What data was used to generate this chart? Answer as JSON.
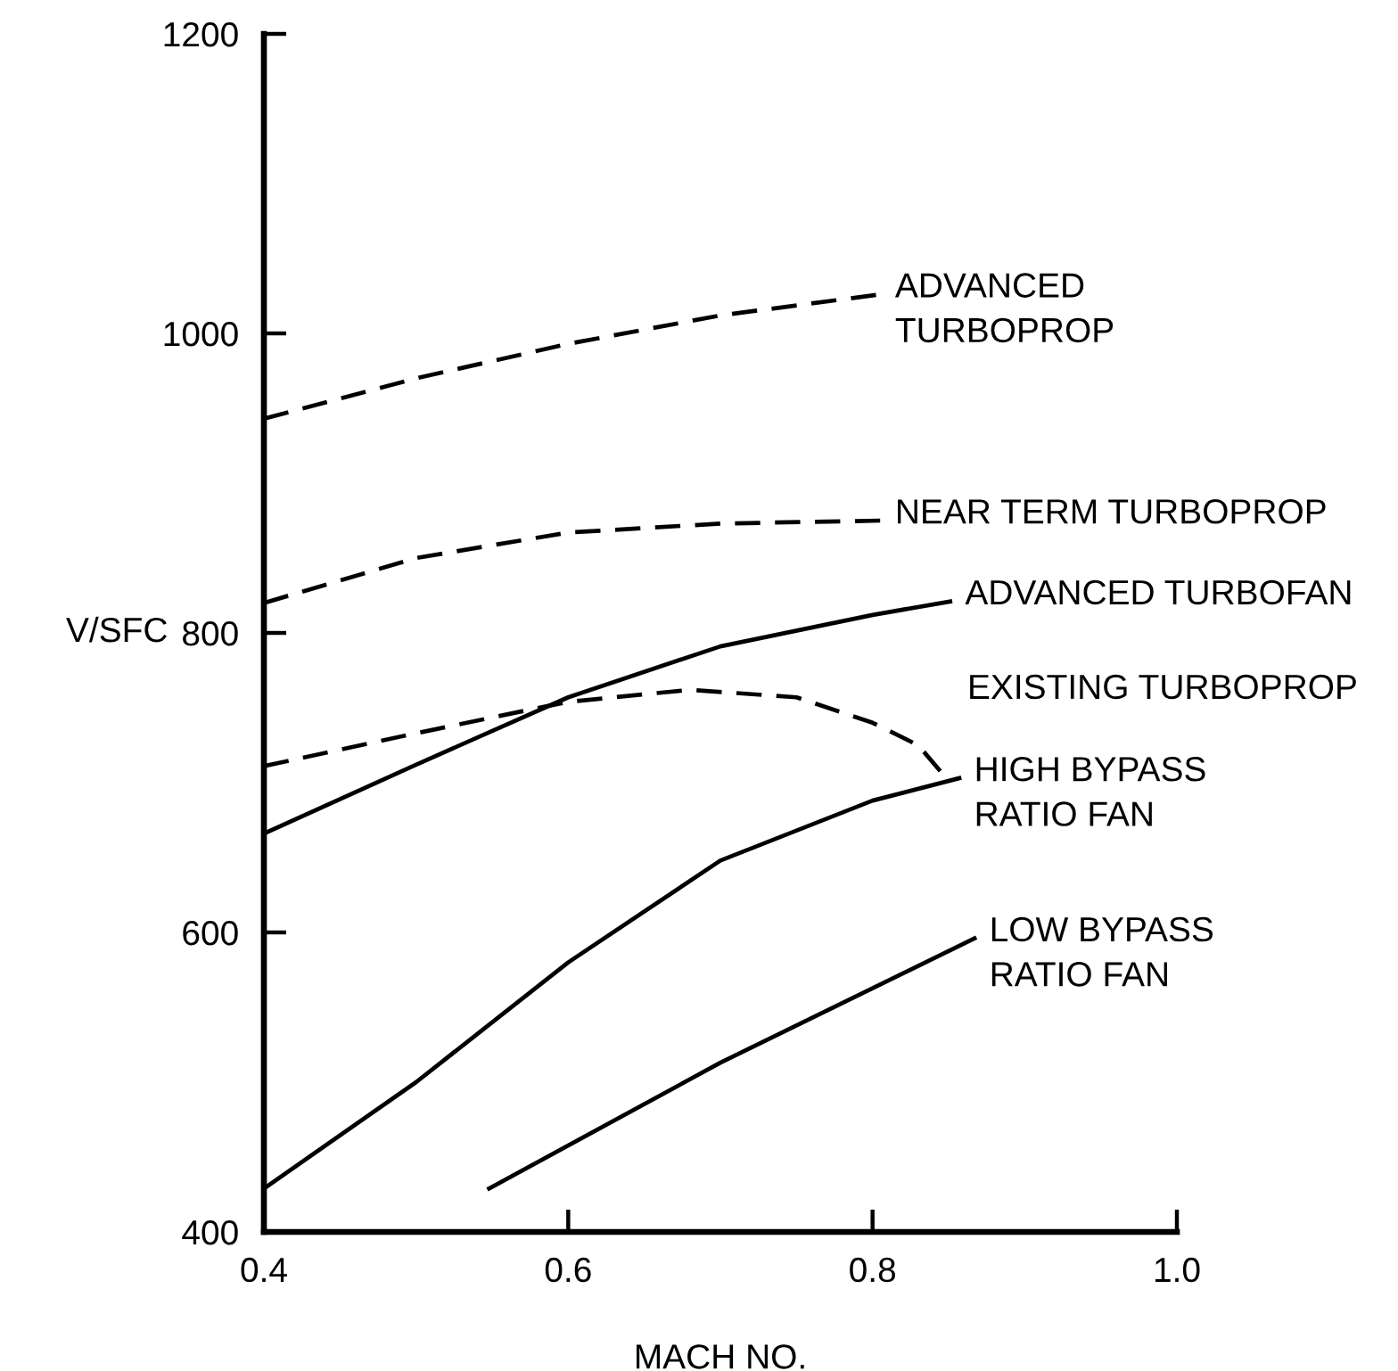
{
  "chart_data": {
    "type": "line",
    "xlabel": "MACH NO.",
    "ylabel": "V/SFC",
    "xlim": [
      0.4,
      1.0
    ],
    "ylim": [
      400,
      1200
    ],
    "xticks": [
      0.4,
      0.6,
      0.8,
      {
        "value": 1.0,
        "label": "1.0"
      }
    ],
    "yticks": [
      400,
      600,
      800,
      1000,
      1200
    ],
    "grid": false,
    "series": [
      {
        "name": "ADVANCED\nTURBOPROP",
        "color": "#000000",
        "line_style": "dashed",
        "x": [
          0.4,
          0.5,
          0.6,
          0.7,
          0.805
        ],
        "values": [
          943,
          970,
          993,
          1012,
          1026
        ]
      },
      {
        "name": "NEAR TERM TURBOPROP",
        "color": "#000000",
        "line_style": "dashed",
        "x": [
          0.4,
          0.5,
          0.6,
          0.7,
          0.805
        ],
        "values": [
          820,
          850,
          867,
          873,
          875
        ]
      },
      {
        "name": "ADVANCED TURBOFAN",
        "color": "#000000",
        "line_style": "solid",
        "x": [
          0.4,
          0.5,
          0.6,
          0.7,
          0.8,
          0.851
        ],
        "values": [
          666,
          712,
          757,
          791,
          812,
          821
        ]
      },
      {
        "name": "EXISTING TURBOPROP",
        "color": "#000000",
        "line_style": "dashed",
        "x": [
          0.4,
          0.5,
          0.6,
          0.68,
          0.75,
          0.8,
          0.83,
          0.846
        ],
        "values": [
          711,
          733,
          754,
          762,
          757,
          740,
          725,
          706
        ]
      },
      {
        "name": "HIGH BYPASS\nRATIO FAN",
        "color": "#000000",
        "line_style": "solid",
        "x": [
          0.4,
          0.5,
          0.6,
          0.7,
          0.8,
          0.857
        ],
        "values": [
          429,
          500,
          580,
          648,
          688,
          703
        ]
      },
      {
        "name": "LOW BYPASS\nRATIO FAN",
        "color": "#000000",
        "line_style": "solid",
        "x": [
          0.548,
          0.7,
          0.867
        ],
        "values": [
          429,
          513,
          596
        ]
      }
    ]
  }
}
